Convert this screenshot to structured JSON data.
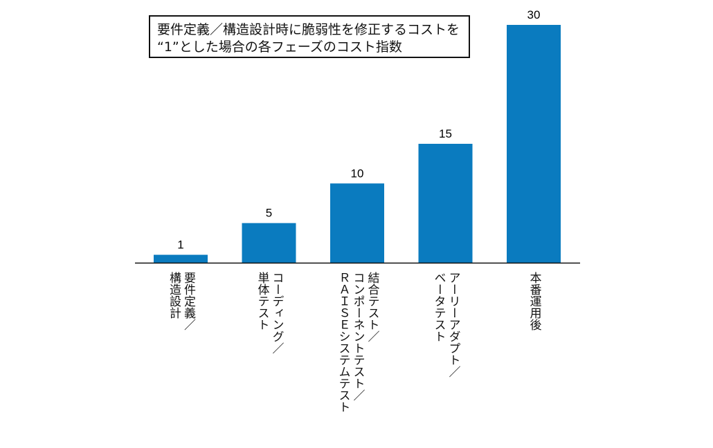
{
  "chart_data": {
    "type": "bar",
    "title": [
      "要件定義／構造設計時に脆弱性を修正するコストを",
      "“1”とした場合の各フェーズのコスト指数"
    ],
    "categories": [
      [
        "要件定義／",
        "構造設計"
      ],
      [
        "コーディング／",
        "単体テスト"
      ],
      [
        "結合テスト／",
        "コンポーネントテスト／",
        "ＲＡＩＳＥシステムテスト"
      ],
      [
        "アーリーアダプト／",
        "ベータテスト"
      ],
      [
        "本番運用後"
      ]
    ],
    "values": [
      1,
      5,
      10,
      15,
      30
    ],
    "data_labels": [
      "1",
      "5",
      "10",
      "15",
      "30"
    ],
    "ylim": [
      0,
      30
    ],
    "grid": false,
    "bar_color": "#0a7bbf",
    "xlabel": "",
    "ylabel": ""
  }
}
